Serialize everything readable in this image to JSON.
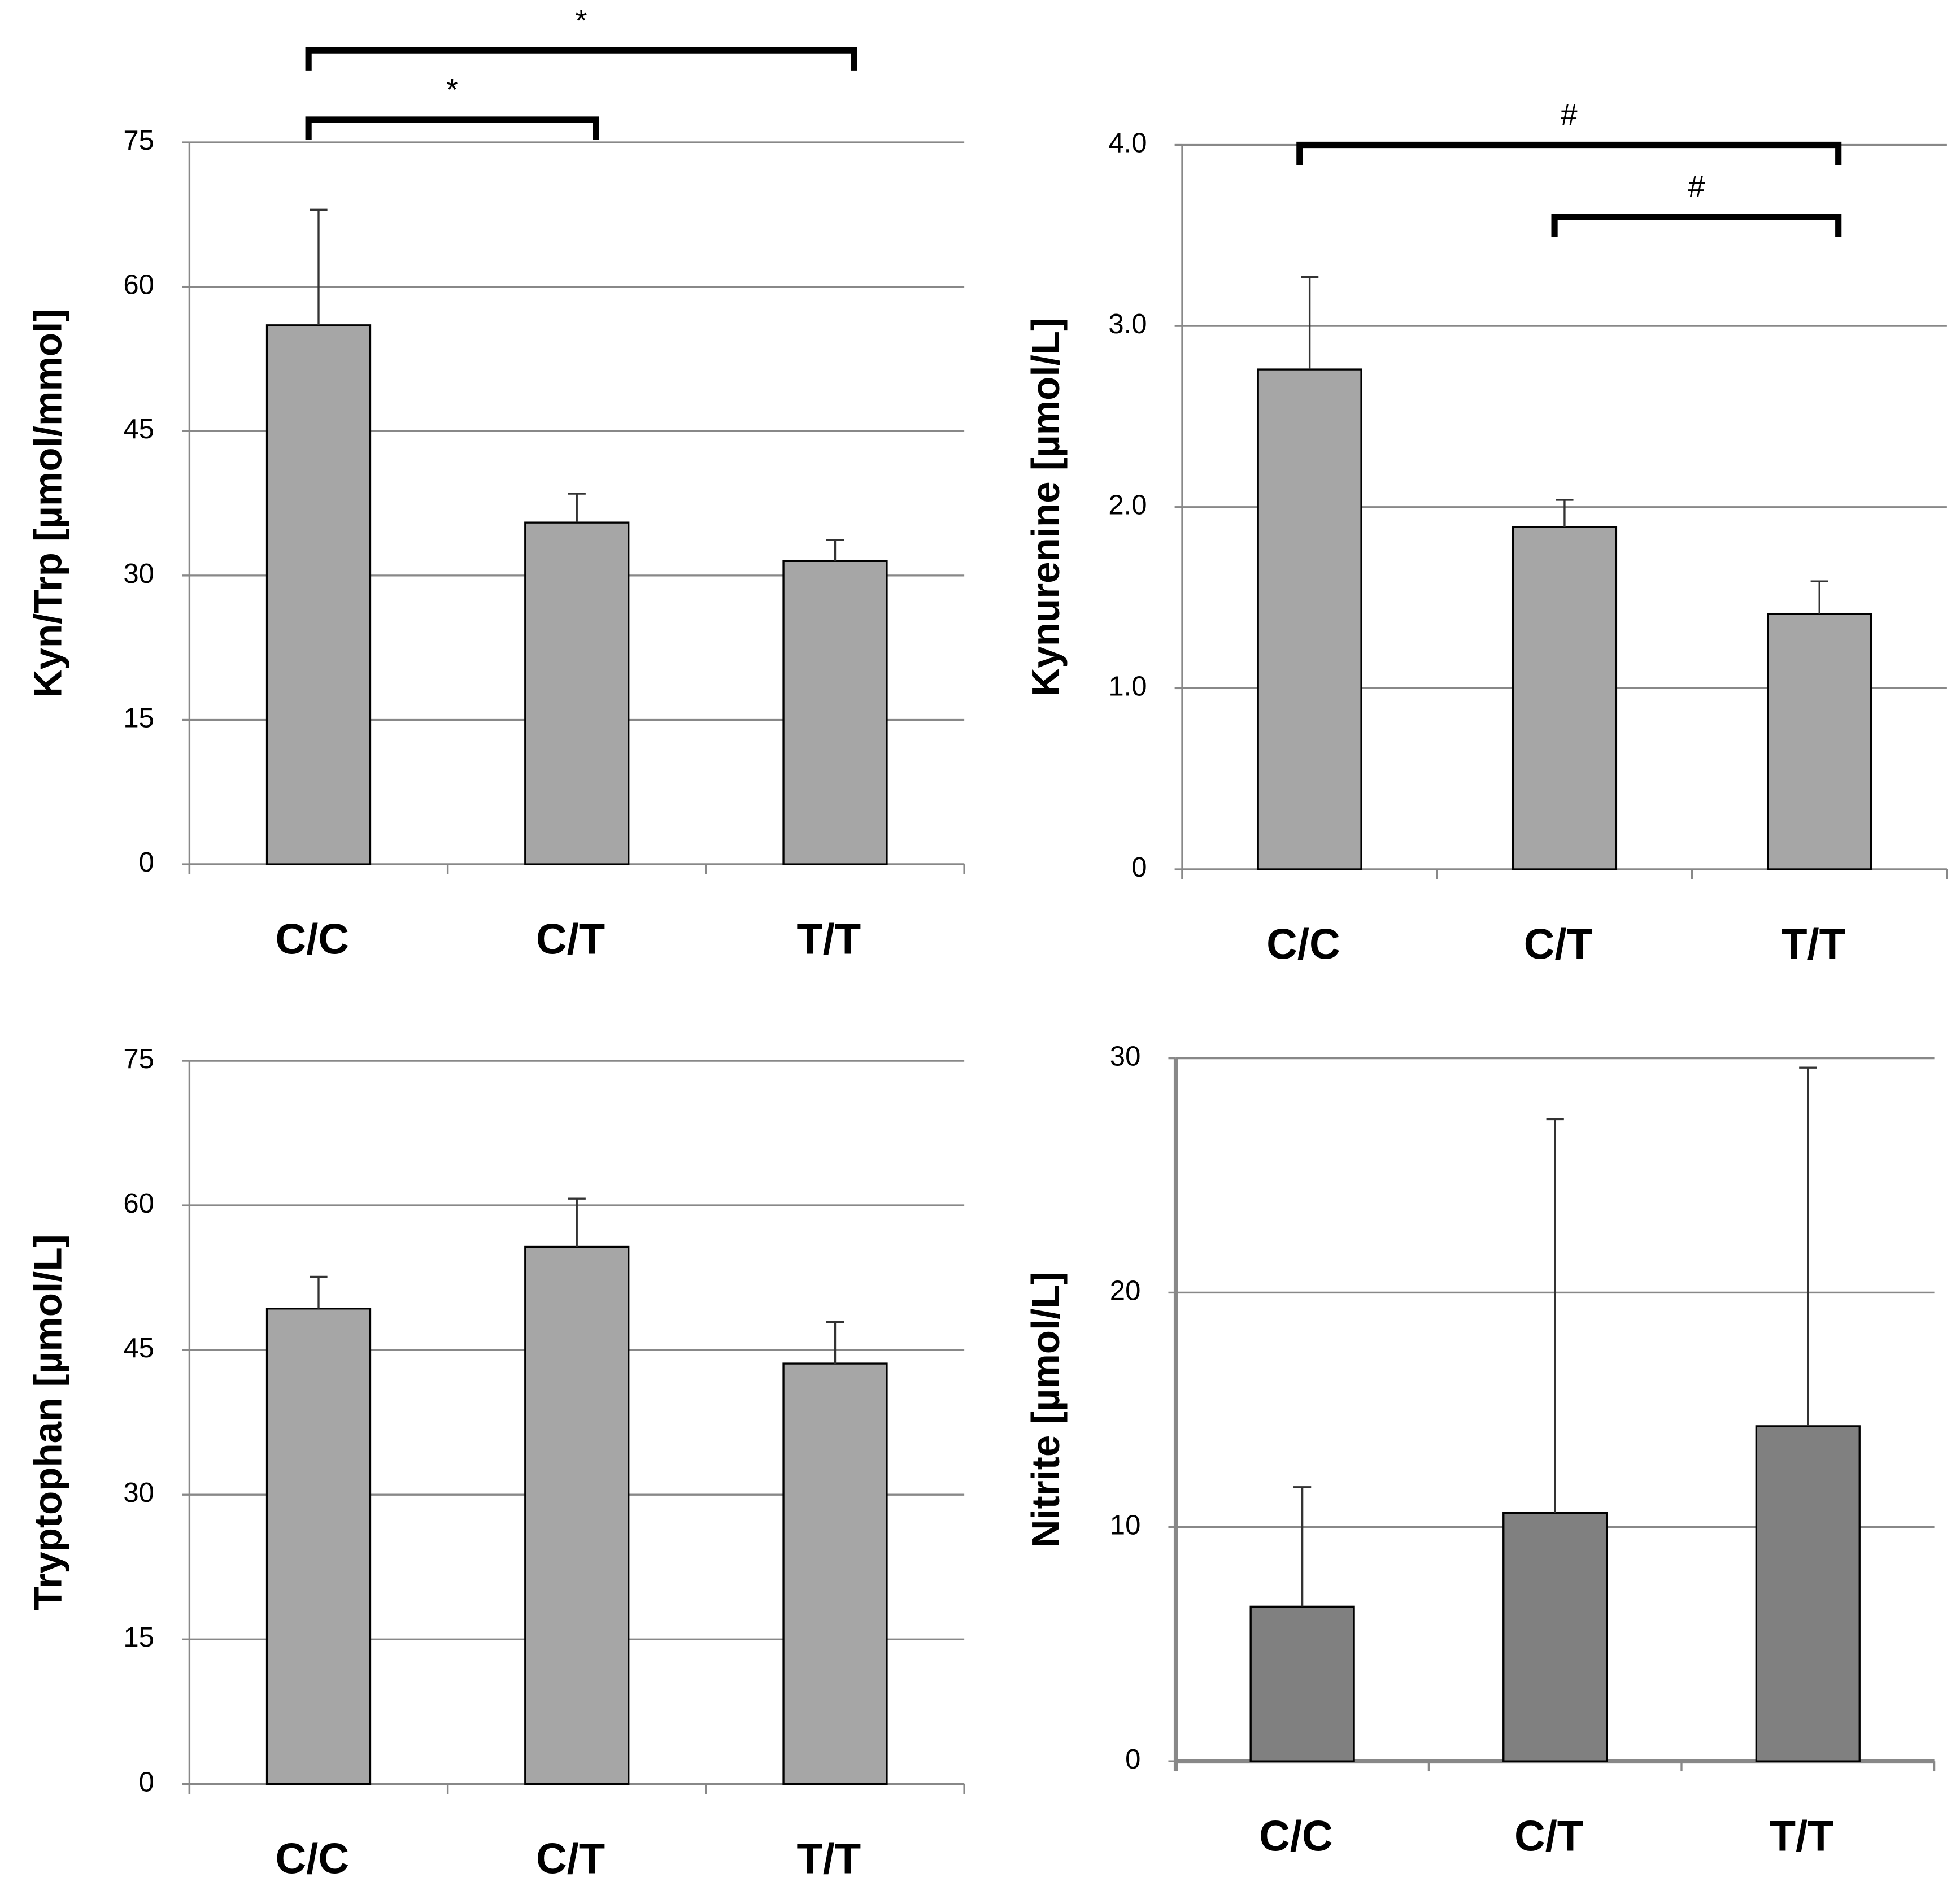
{
  "chart_data": [
    {
      "type": "bar",
      "ylabel": "Kyn/Trp [µmol/mmol]",
      "categories": [
        "C/C",
        "C/T",
        "T/T"
      ],
      "values": [
        56,
        35.5,
        31.5
      ],
      "errors": [
        12,
        3,
        2.2
      ],
      "color": "#a6a6a6",
      "ylim": [
        0,
        75
      ],
      "yticks": [
        0,
        15,
        30,
        45,
        60,
        75
      ],
      "grid": true,
      "annotations": [
        {
          "text": "*",
          "from": 0,
          "to": 1
        },
        {
          "text": "*",
          "from": 0,
          "to": 2
        }
      ]
    },
    {
      "type": "bar",
      "ylabel": "Kynurenine [µmol/L]",
      "categories": [
        "C/C",
        "C/T",
        "T/T"
      ],
      "values": [
        2.76,
        1.89,
        1.41
      ],
      "errors": [
        0.51,
        0.15,
        0.18
      ],
      "color": "#a6a6a6",
      "ylim": [
        0,
        4
      ],
      "yticks": [
        0,
        {
          "value": 1,
          "label": "1.0"
        },
        {
          "value": 2,
          "label": "2.0"
        },
        {
          "value": 3,
          "label": "3.0"
        },
        {
          "value": 4,
          "label": "4.0"
        }
      ],
      "grid": true,
      "annotations": [
        {
          "text": "#",
          "from": 1,
          "to": 2
        },
        {
          "text": "#",
          "from": 0,
          "to": 2
        }
      ]
    },
    {
      "type": "bar",
      "ylabel": "Tryptophan [µmol/L]",
      "categories": [
        "C/C",
        "C/T",
        "T/T"
      ],
      "values": [
        49.3,
        55.7,
        43.6
      ],
      "errors": [
        3.3,
        5,
        4.3
      ],
      "color": "#a6a6a6",
      "ylim": [
        0,
        75
      ],
      "yticks": [
        0,
        15,
        30,
        45,
        60,
        75
      ],
      "grid": true
    },
    {
      "type": "bar",
      "ylabel": "Nitrite [µmol/L]",
      "categories": [
        "C/C",
        "C/T",
        "T/T"
      ],
      "values": [
        6.6,
        10.6,
        14.3
      ],
      "errors": [
        5.1,
        16.8,
        15.3
      ],
      "color": "#808080",
      "ylim": [
        0,
        30
      ],
      "yticks": [
        0,
        10,
        20,
        30
      ],
      "grid": true
    }
  ]
}
